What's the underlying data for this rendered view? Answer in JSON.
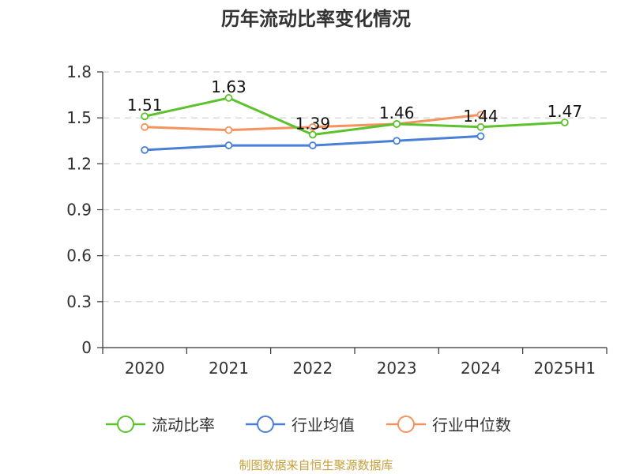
{
  "chart_data": {
    "type": "line",
    "title": "历年流动比率变化情况",
    "categories": [
      "2020",
      "2021",
      "2022",
      "2023",
      "2024",
      "2025H1"
    ],
    "ylim": [
      0,
      1.8
    ],
    "yticks": [
      "0",
      "0.3",
      "0.6",
      "0.9",
      "1.2",
      "1.5",
      "1.8"
    ],
    "grid": true,
    "legend_position": "bottom",
    "series": [
      {
        "name": "流动比率",
        "color": "#5cc22d",
        "values": [
          1.51,
          1.63,
          1.39,
          1.46,
          1.44,
          1.47
        ],
        "labels": [
          "1.51",
          "1.63",
          "1.39",
          "1.46",
          "1.44",
          "1.47"
        ]
      },
      {
        "name": "行业均值",
        "color": "#4a7fd6",
        "values": [
          1.29,
          1.32,
          1.32,
          1.35,
          1.38,
          null
        ]
      },
      {
        "name": "行业中位数",
        "color": "#f4935d",
        "values": [
          1.44,
          1.42,
          1.44,
          1.46,
          1.52,
          null
        ]
      }
    ]
  },
  "source_text": "制图数据来自恒生聚源数据库"
}
